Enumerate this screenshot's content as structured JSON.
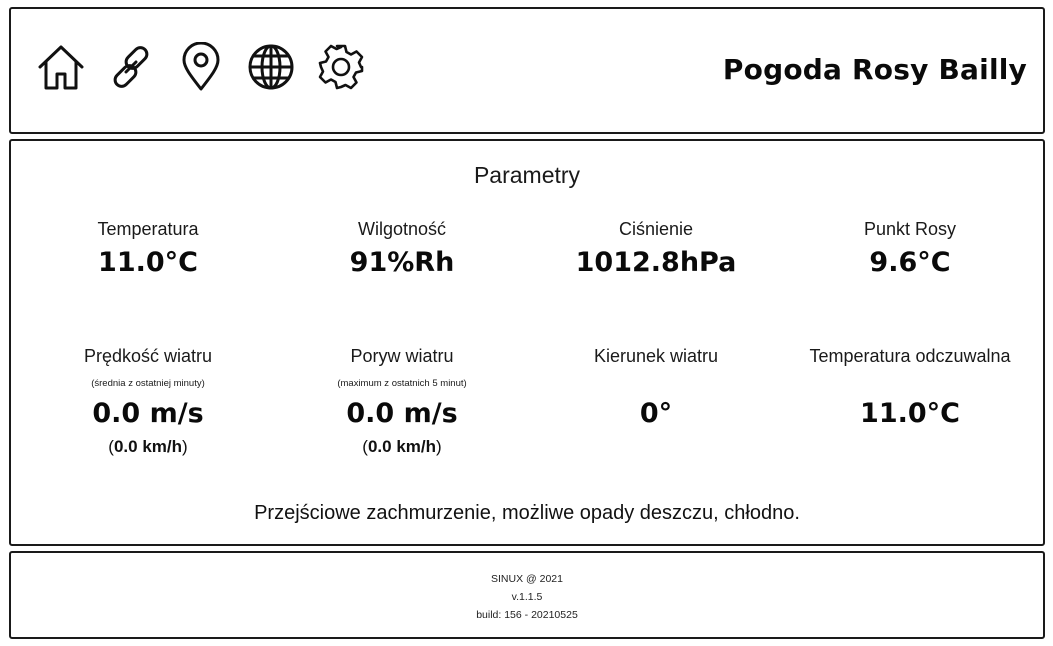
{
  "header": {
    "title": "Pogoda Rosy Bailly",
    "icons": [
      "home-icon",
      "link-icon",
      "location-pin-icon",
      "globe-icon",
      "gear-icon"
    ]
  },
  "params": {
    "title": "Parametry",
    "temperature": {
      "label": "Temperatura",
      "value": "11.0°C"
    },
    "humidity": {
      "label": "Wilgotność",
      "value": "91%Rh"
    },
    "pressure": {
      "label": "Ciśnienie",
      "value": "1012.8hPa"
    },
    "dew_point": {
      "label": "Punkt Rosy",
      "value": "9.6°C"
    },
    "wind_speed": {
      "label": "Prędkość wiatru",
      "note": "(średnia z ostatniej minuty)",
      "value": "0.0 m/s",
      "sub_value": "0.0 km/h"
    },
    "wind_gust": {
      "label": "Poryw wiatru",
      "note": "(maximum z ostatnich 5 minut)",
      "value": "0.0 m/s",
      "sub_value": "0.0 km/h"
    },
    "wind_direction": {
      "label": "Kierunek wiatru",
      "value": "0°"
    },
    "feels_like": {
      "label": "Temperatura odczuwalna",
      "value": "11.0°C"
    },
    "forecast": "Przejściowe zachmurzenie, możliwe opady deszczu, chłodno."
  },
  "footer": {
    "copyright": "SINUX @ 2021",
    "version": "v.1.1.5",
    "build": "build: 156 - 20210525"
  }
}
